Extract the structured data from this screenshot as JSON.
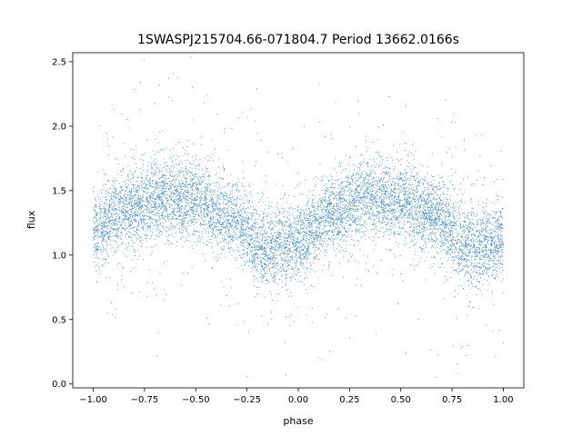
{
  "chart_data": {
    "type": "scatter",
    "title": "1SWASPJ215704.66-071804.7 Period 13662.0166s",
    "xlabel": "phase",
    "ylabel": "flux",
    "xlim": [
      -1.1,
      1.1
    ],
    "ylim": [
      -0.03,
      2.57
    ],
    "xticks": [
      -1.0,
      -0.75,
      -0.5,
      -0.25,
      0.0,
      0.25,
      0.5,
      0.75,
      1.0
    ],
    "xtick_labels": [
      "−1.00",
      "−0.75",
      "−0.50",
      "−0.25",
      "0.00",
      "0.25",
      "0.50",
      "0.75",
      "1.00"
    ],
    "yticks": [
      0.0,
      0.5,
      1.0,
      1.5,
      2.0,
      2.5
    ],
    "ytick_labels": [
      "0.0",
      "0.5",
      "1.0",
      "1.5",
      "2.0",
      "2.5"
    ],
    "grid": false,
    "marker_color": "#1f77b4",
    "series": [
      {
        "x_range": [
          -1.0,
          1.0
        ],
        "trend_x": [
          -1.0,
          -0.85,
          -0.65,
          -0.5,
          -0.35,
          -0.15,
          0.0,
          0.15,
          0.35,
          0.5,
          0.65,
          0.85,
          1.0
        ],
        "trend_y": [
          1.2,
          1.35,
          1.45,
          1.42,
          1.3,
          1.05,
          1.1,
          1.3,
          1.45,
          1.42,
          1.3,
          1.05,
          1.12
        ]
      }
    ]
  }
}
